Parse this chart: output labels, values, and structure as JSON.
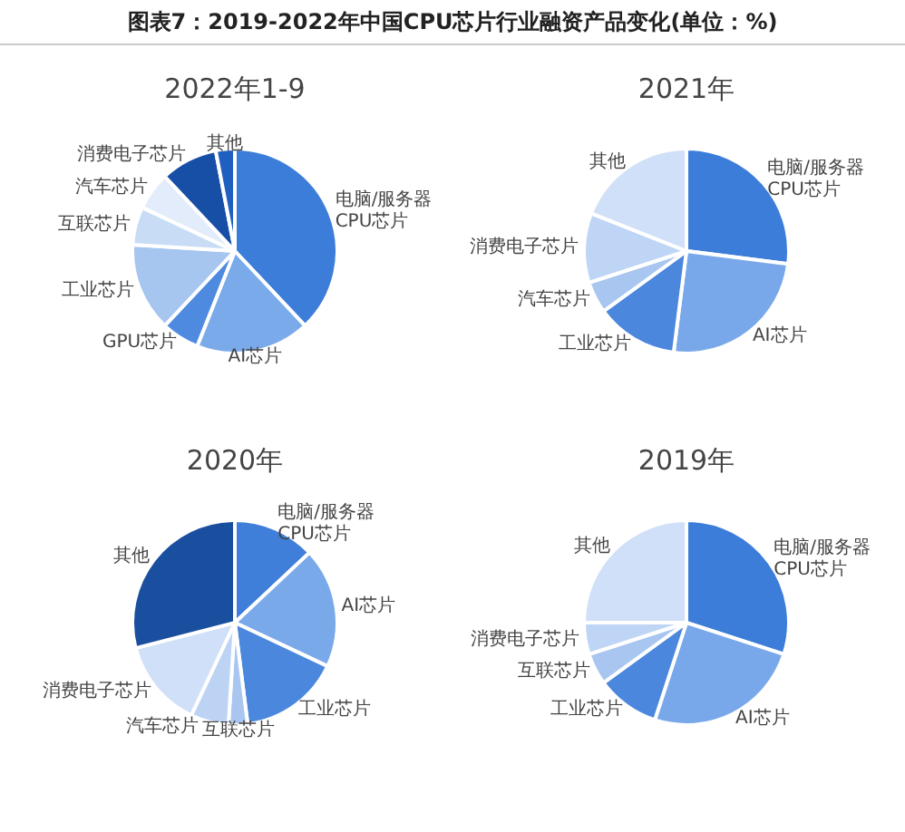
{
  "chart_data": [
    {
      "type": "pie",
      "title": "2022年1-9",
      "annotations": [
        "图表7：2019-2022年中国CPU芯片行业融资产品变化(单位：%)"
      ],
      "categories": [
        "电脑/服务器\nCPU芯片",
        "AI芯片",
        "GPU芯片",
        "工业芯片",
        "互联芯片",
        "汽车芯片",
        "消费电子芯片",
        "其他"
      ],
      "values": [
        38,
        18,
        6,
        14,
        6,
        6,
        9,
        3
      ],
      "colors": [
        "#3c7dd9",
        "#7aaaea",
        "#4d8ae0",
        "#a6c5ef",
        "#c9dcf6",
        "#e2ecfa",
        "#174ea6",
        "#1f5fc0"
      ]
    },
    {
      "type": "pie",
      "title": "2021年",
      "categories": [
        "电脑/服务器\nCPU芯片",
        "AI芯片",
        "工业芯片",
        "汽车芯片",
        "消费电子芯片",
        "其他"
      ],
      "values": [
        27,
        25,
        13,
        5,
        11,
        19
      ],
      "colors": [
        "#3c7dd9",
        "#79a8ea",
        "#4a87dd",
        "#a8c6f0",
        "#bfd5f5",
        "#cfe0f8"
      ]
    },
    {
      "type": "pie",
      "title": "2020年",
      "categories": [
        "电脑/服务器\nCPU芯片",
        "AI芯片",
        "工业芯片",
        "互联芯片",
        "汽车芯片",
        "消费电子芯片",
        "其他"
      ],
      "values": [
        13,
        19,
        16,
        3,
        6,
        14,
        29
      ],
      "colors": [
        "#3f7fd9",
        "#7aa9ea",
        "#4a87dd",
        "#a8c6f0",
        "#bcd3f4",
        "#cfe0f8",
        "#1a4e9f"
      ]
    },
    {
      "type": "pie",
      "title": "2019年",
      "categories": [
        "电脑/服务器\nCPU芯片",
        "AI芯片",
        "工业芯片",
        "互联芯片",
        "消费电子芯片",
        "其他"
      ],
      "values": [
        30,
        25,
        10,
        5,
        5,
        25
      ],
      "colors": [
        "#3c7dd9",
        "#79a8ea",
        "#4a87dd",
        "#a8c6f0",
        "#bfd5f5",
        "#cfe0f8"
      ]
    }
  ]
}
